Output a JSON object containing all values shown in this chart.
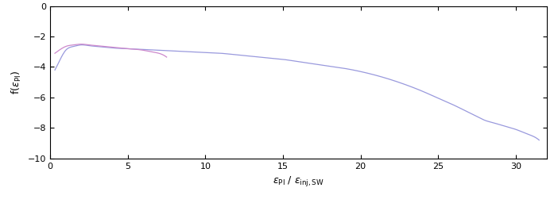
{
  "xlim": [
    0,
    32
  ],
  "ylim": [
    -10,
    0
  ],
  "xticks": [
    0,
    5,
    10,
    15,
    20,
    25,
    30
  ],
  "yticks": [
    0,
    -2,
    -4,
    -6,
    -8,
    -10
  ],
  "line1_color": "#cc88cc",
  "line2_color": "#9999dd",
  "bg_color": "#ffffff",
  "linewidth": 0.9,
  "blue_x": [
    0.3,
    0.5,
    0.8,
    1.0,
    1.5,
    2.0,
    2.5,
    3.0,
    4.0,
    5.0,
    6.0,
    7.0,
    8.0,
    9.0,
    10.0,
    11.0,
    12.0,
    13.0,
    14.0,
    15.0,
    16.0,
    17.0,
    18.0,
    19.0,
    20.0,
    21.0,
    22.0,
    23.0,
    24.0,
    25.0,
    26.0,
    27.0,
    27.5,
    28.0,
    28.5,
    29.0,
    29.5,
    30.0,
    30.5,
    31.0,
    31.3,
    31.5
  ],
  "blue_y": [
    -4.2,
    -3.8,
    -3.2,
    -2.9,
    -2.65,
    -2.55,
    -2.6,
    -2.65,
    -2.75,
    -2.8,
    -2.85,
    -2.9,
    -2.95,
    -3.0,
    -3.05,
    -3.1,
    -3.2,
    -3.3,
    -3.4,
    -3.5,
    -3.65,
    -3.8,
    -3.95,
    -4.1,
    -4.3,
    -4.55,
    -4.85,
    -5.2,
    -5.6,
    -6.05,
    -6.5,
    -7.0,
    -7.25,
    -7.5,
    -7.65,
    -7.8,
    -7.95,
    -8.1,
    -8.3,
    -8.5,
    -8.65,
    -8.8
  ],
  "pink_x": [
    0.3,
    0.5,
    0.8,
    1.0,
    1.5,
    2.0,
    2.5,
    3.0,
    4.0,
    5.0,
    6.0,
    6.5,
    7.0,
    7.5
  ],
  "pink_y": [
    -3.1,
    -2.95,
    -2.75,
    -2.65,
    -2.55,
    -2.5,
    -2.55,
    -2.6,
    -2.7,
    -2.8,
    -2.9,
    -3.0,
    -3.1,
    -3.35
  ]
}
